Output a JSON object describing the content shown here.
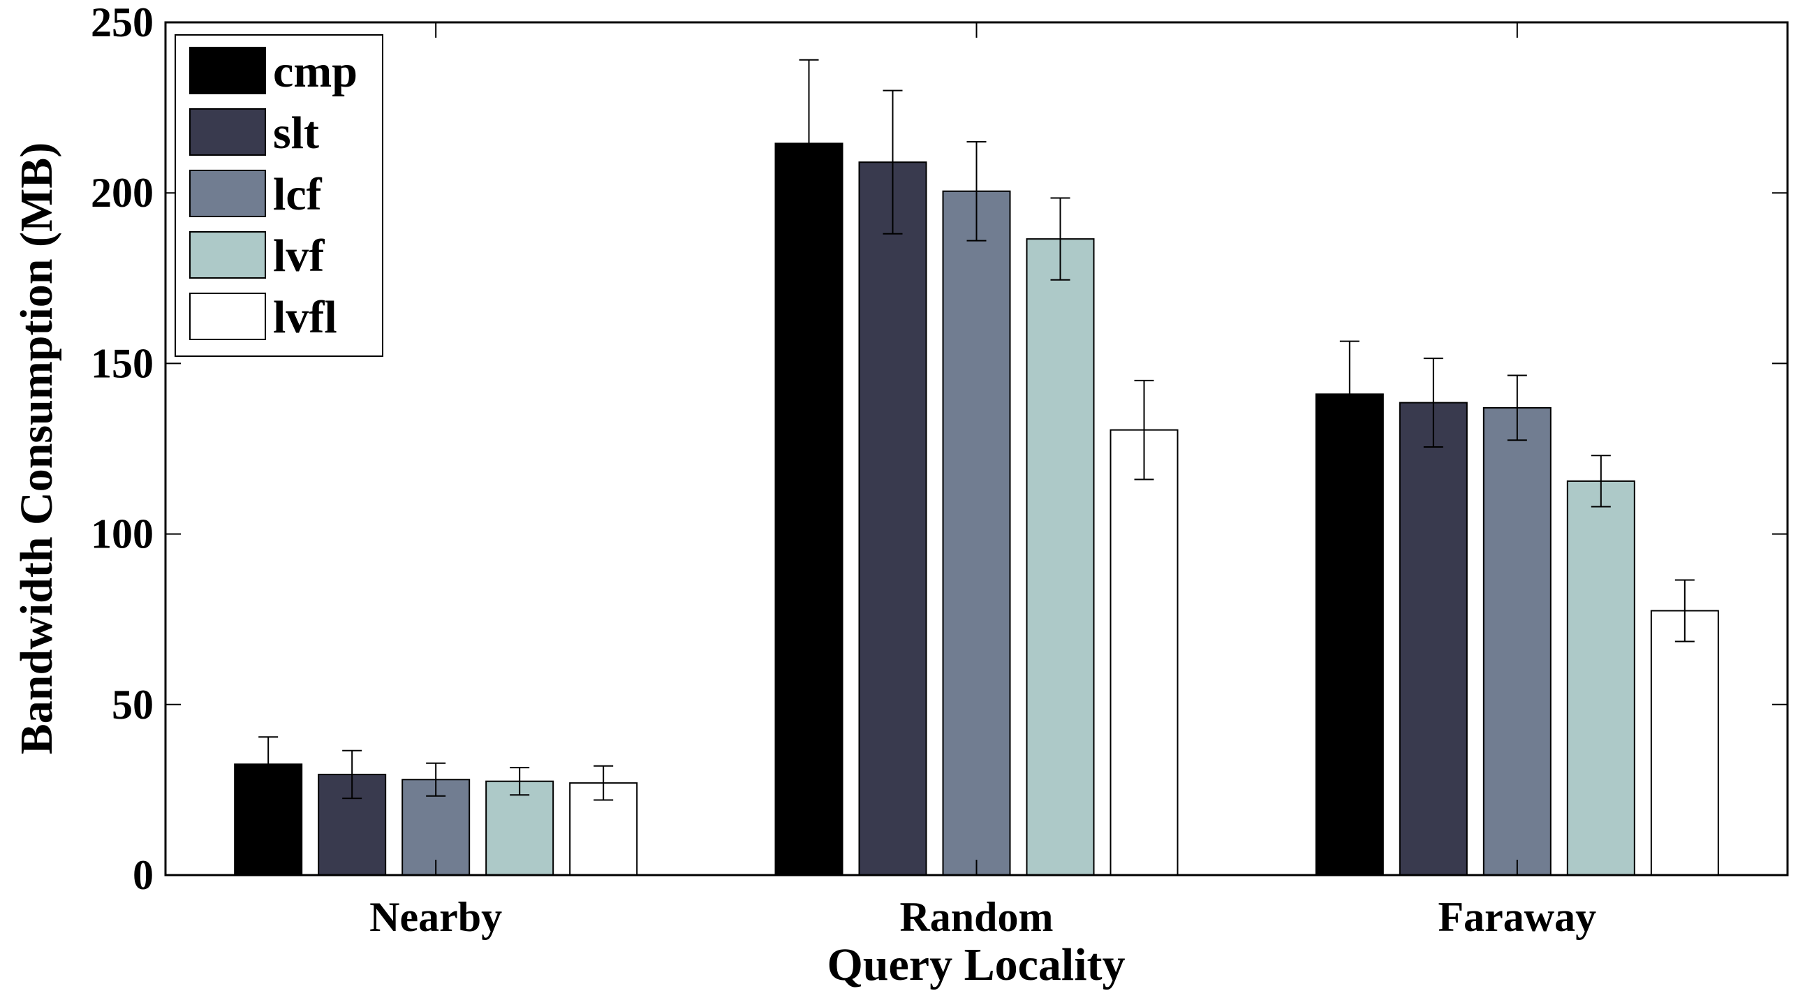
{
  "chart_data": {
    "type": "bar",
    "title": "",
    "xlabel": "Query Locality",
    "ylabel": "Bandwidth Consumption (MB)",
    "ylim": [
      0,
      250
    ],
    "yticks": [
      0,
      50,
      100,
      150,
      200,
      250
    ],
    "grid": false,
    "legend_position": "top-left",
    "error_bars": true,
    "categories": [
      "Nearby",
      "Random",
      "Faraway"
    ],
    "series": [
      {
        "name": "cmp",
        "color": "#000000",
        "values": [
          32.5,
          214.5,
          141.0
        ],
        "errors": [
          8.0,
          24.5,
          15.5
        ]
      },
      {
        "name": "slt",
        "color": "#393a4e",
        "values": [
          29.5,
          209.0,
          138.5
        ],
        "errors": [
          7.0,
          21.0,
          13.0
        ]
      },
      {
        "name": "lcf",
        "color": "#717d91",
        "values": [
          28.0,
          200.5,
          137.0
        ],
        "errors": [
          4.8,
          14.5,
          9.5
        ]
      },
      {
        "name": "lvf",
        "color": "#adc9c8",
        "values": [
          27.5,
          186.5,
          115.5
        ],
        "errors": [
          4.0,
          12.0,
          7.5
        ]
      },
      {
        "name": "lvfl",
        "color": "#ffffff",
        "values": [
          27.0,
          130.5,
          77.5
        ],
        "errors": [
          5.0,
          14.5,
          9.0
        ]
      }
    ]
  }
}
